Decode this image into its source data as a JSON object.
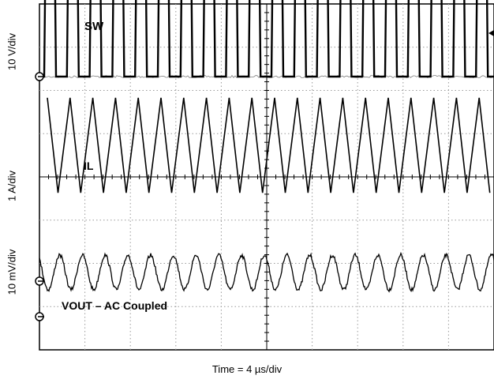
{
  "chart_data": {
    "type": "line",
    "title": "",
    "xlabel": "Time = 4 µs/div",
    "ylabels": [
      "10 V/div",
      "1 A/div",
      "10 mV/div"
    ],
    "grid": true,
    "grid_divisions": {
      "x": 10,
      "y": 8
    },
    "xlim": [
      0,
      40
    ],
    "x_unit": "µs",
    "series": [
      {
        "name": "SW",
        "label": "SW",
        "waveform": "square",
        "period_us": 2.0,
        "low_V": 0,
        "high_V": 26,
        "duty": 0.47,
        "volts_per_div": 10
      },
      {
        "name": "IL",
        "label": "IL",
        "waveform": "triangle",
        "period_us": 2.0,
        "peak_to_peak_A": 2.2,
        "amps_per_div": 1
      },
      {
        "name": "VOUT",
        "label": "VOUT – AC Coupled",
        "waveform": "sine",
        "period_us": 2.0,
        "ripple_pp_mV": 8,
        "millivolts_per_div": 10,
        "coupling": "AC"
      }
    ]
  }
}
